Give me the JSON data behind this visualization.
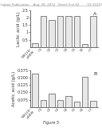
{
  "header_text": "Patent Application Publication    Aug. 28, 2012   Sheet 9 of 42        US 2012/0214060 A1",
  "top_chart": {
    "label": "A",
    "ylabel": "Lactic acid (g/L)",
    "ylim": [
      0,
      2.5
    ],
    "yticks": [
      0.5,
      1.0,
      1.5,
      2.0,
      2.5
    ],
    "ytick_labels": [
      "0.5",
      "1",
      "1.5",
      "2",
      "2.5"
    ],
    "categories": [
      "W3110/\npGEM",
      "C1",
      "C2",
      "C3",
      "C4",
      "C5",
      "C6",
      "C7"
    ],
    "values": [
      0.25,
      2.1,
      1.85,
      2.15,
      2.1,
      2.1,
      0.18,
      2.15
    ],
    "bar_color": "#e8e8e8",
    "bar_edge": "#444444"
  },
  "bottom_chart": {
    "label": "B",
    "ylabel": "Acetic acid (g/L)",
    "ylim": [
      0,
      0.375
    ],
    "yticks": [
      0.075,
      0.15,
      0.225,
      0.3,
      0.375
    ],
    "ytick_labels": [
      "0.075",
      "0.150",
      "0.225",
      "0.300",
      "0.375"
    ],
    "categories": [
      "W3110/\npGEM",
      "C1",
      "C2",
      "C3",
      "C4",
      "C5",
      "C6",
      "C7"
    ],
    "values": [
      0.34,
      0.07,
      0.14,
      0.075,
      0.115,
      0.055,
      0.31,
      0.065
    ],
    "bar_color": "#e8e8e8",
    "bar_edge": "#444444"
  },
  "figure_label": "Figure 5",
  "bg_color": "#ffffff",
  "text_color": "#333333",
  "header_color": "#888888",
  "tick_fontsize": 3.5,
  "label_fontsize": 4.0,
  "cat_fontsize": 3.0,
  "header_fontsize": 2.8
}
